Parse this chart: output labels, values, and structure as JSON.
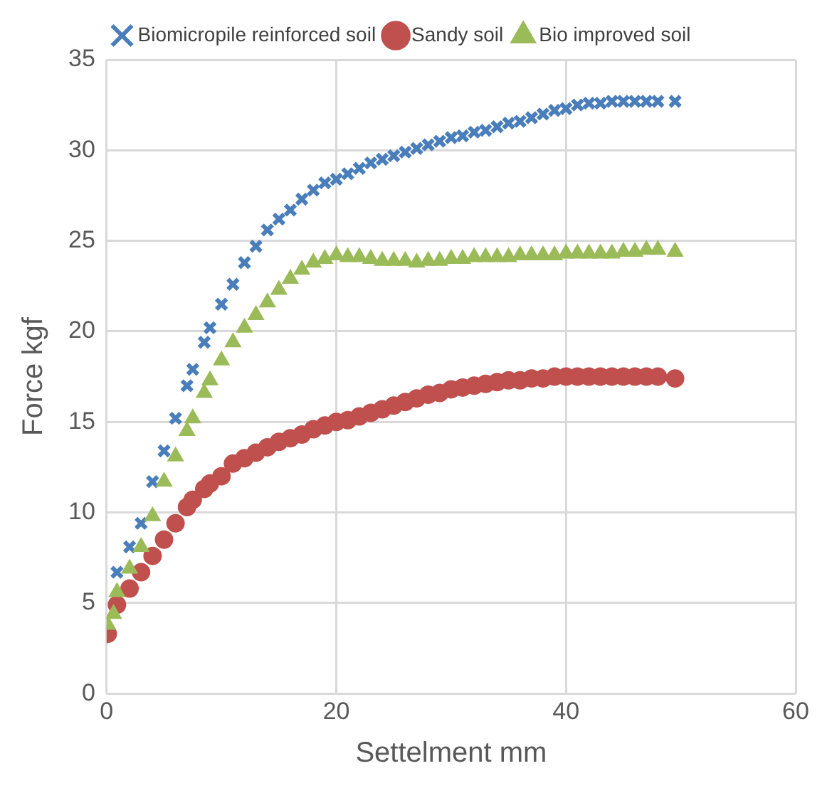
{
  "chart_data": {
    "type": "scatter",
    "xlabel": "Settelment mm",
    "ylabel": "Force kgf",
    "x": [
      0.1,
      0.6,
      0.9,
      2,
      3,
      4,
      5,
      6,
      7,
      7.5,
      8.5,
      9,
      10,
      11,
      12,
      13,
      14,
      15,
      16,
      17,
      18,
      19,
      20,
      21,
      22,
      23,
      24,
      25,
      26,
      27,
      28,
      29,
      30,
      31,
      32,
      33,
      34,
      35,
      36,
      37,
      38,
      39,
      40,
      41,
      42,
      43,
      44,
      45,
      46,
      47,
      48,
      49.5
    ],
    "series": [
      {
        "name": "Biomicropile reinforced soil",
        "color": "#4a7ebb",
        "marker": "cross",
        "values": [
          null,
          null,
          6.7,
          8.1,
          9.4,
          11.7,
          13.4,
          15.2,
          17.0,
          17.9,
          19.4,
          20.2,
          21.5,
          22.6,
          23.8,
          24.7,
          25.6,
          26.2,
          26.7,
          27.3,
          27.8,
          28.2,
          28.4,
          28.7,
          29.0,
          29.3,
          29.5,
          29.7,
          29.9,
          30.1,
          30.3,
          30.5,
          30.7,
          30.8,
          31.0,
          31.1,
          31.3,
          31.5,
          31.6,
          31.8,
          32.0,
          32.2,
          32.3,
          32.5,
          32.6,
          32.6,
          32.7,
          32.7,
          32.7,
          32.7,
          32.7,
          32.7
        ]
      },
      {
        "name": "Sandy soil",
        "color": "#c0504d",
        "marker": "circle",
        "values": [
          3.3,
          null,
          4.9,
          5.8,
          6.7,
          7.6,
          8.5,
          9.4,
          10.3,
          10.7,
          11.3,
          11.6,
          12.0,
          12.7,
          13.0,
          13.3,
          13.6,
          13.9,
          14.1,
          14.3,
          14.6,
          14.8,
          15.0,
          15.1,
          15.3,
          15.5,
          15.7,
          15.9,
          16.1,
          16.3,
          16.5,
          16.6,
          16.8,
          16.9,
          17.0,
          17.1,
          17.2,
          17.3,
          17.3,
          17.4,
          17.4,
          17.5,
          17.5,
          17.5,
          17.5,
          17.5,
          17.5,
          17.5,
          17.5,
          17.5,
          17.5,
          17.4
        ]
      },
      {
        "name": "Bio improved soil",
        "color": "#9bbb59",
        "marker": "triangle",
        "values": [
          3.8,
          4.4,
          5.6,
          6.9,
          8.1,
          9.8,
          11.7,
          13.1,
          14.5,
          15.2,
          16.6,
          17.3,
          18.4,
          19.4,
          20.2,
          20.9,
          21.6,
          22.3,
          22.9,
          23.4,
          23.8,
          24.0,
          24.2,
          24.1,
          24.1,
          24.0,
          23.9,
          23.9,
          23.9,
          23.8,
          23.9,
          23.9,
          24.0,
          24.0,
          24.1,
          24.1,
          24.1,
          24.1,
          24.2,
          24.2,
          24.2,
          24.2,
          24.3,
          24.3,
          24.3,
          24.3,
          24.3,
          24.4,
          24.4,
          24.5,
          24.5,
          24.4
        ]
      }
    ],
    "xlim": [
      0,
      60
    ],
    "xticks": [
      0,
      20,
      40,
      60
    ],
    "ylim": [
      0,
      35
    ],
    "yticks": [
      0,
      5,
      10,
      15,
      20,
      25,
      30,
      35
    ],
    "grid": true,
    "legend": "top"
  }
}
